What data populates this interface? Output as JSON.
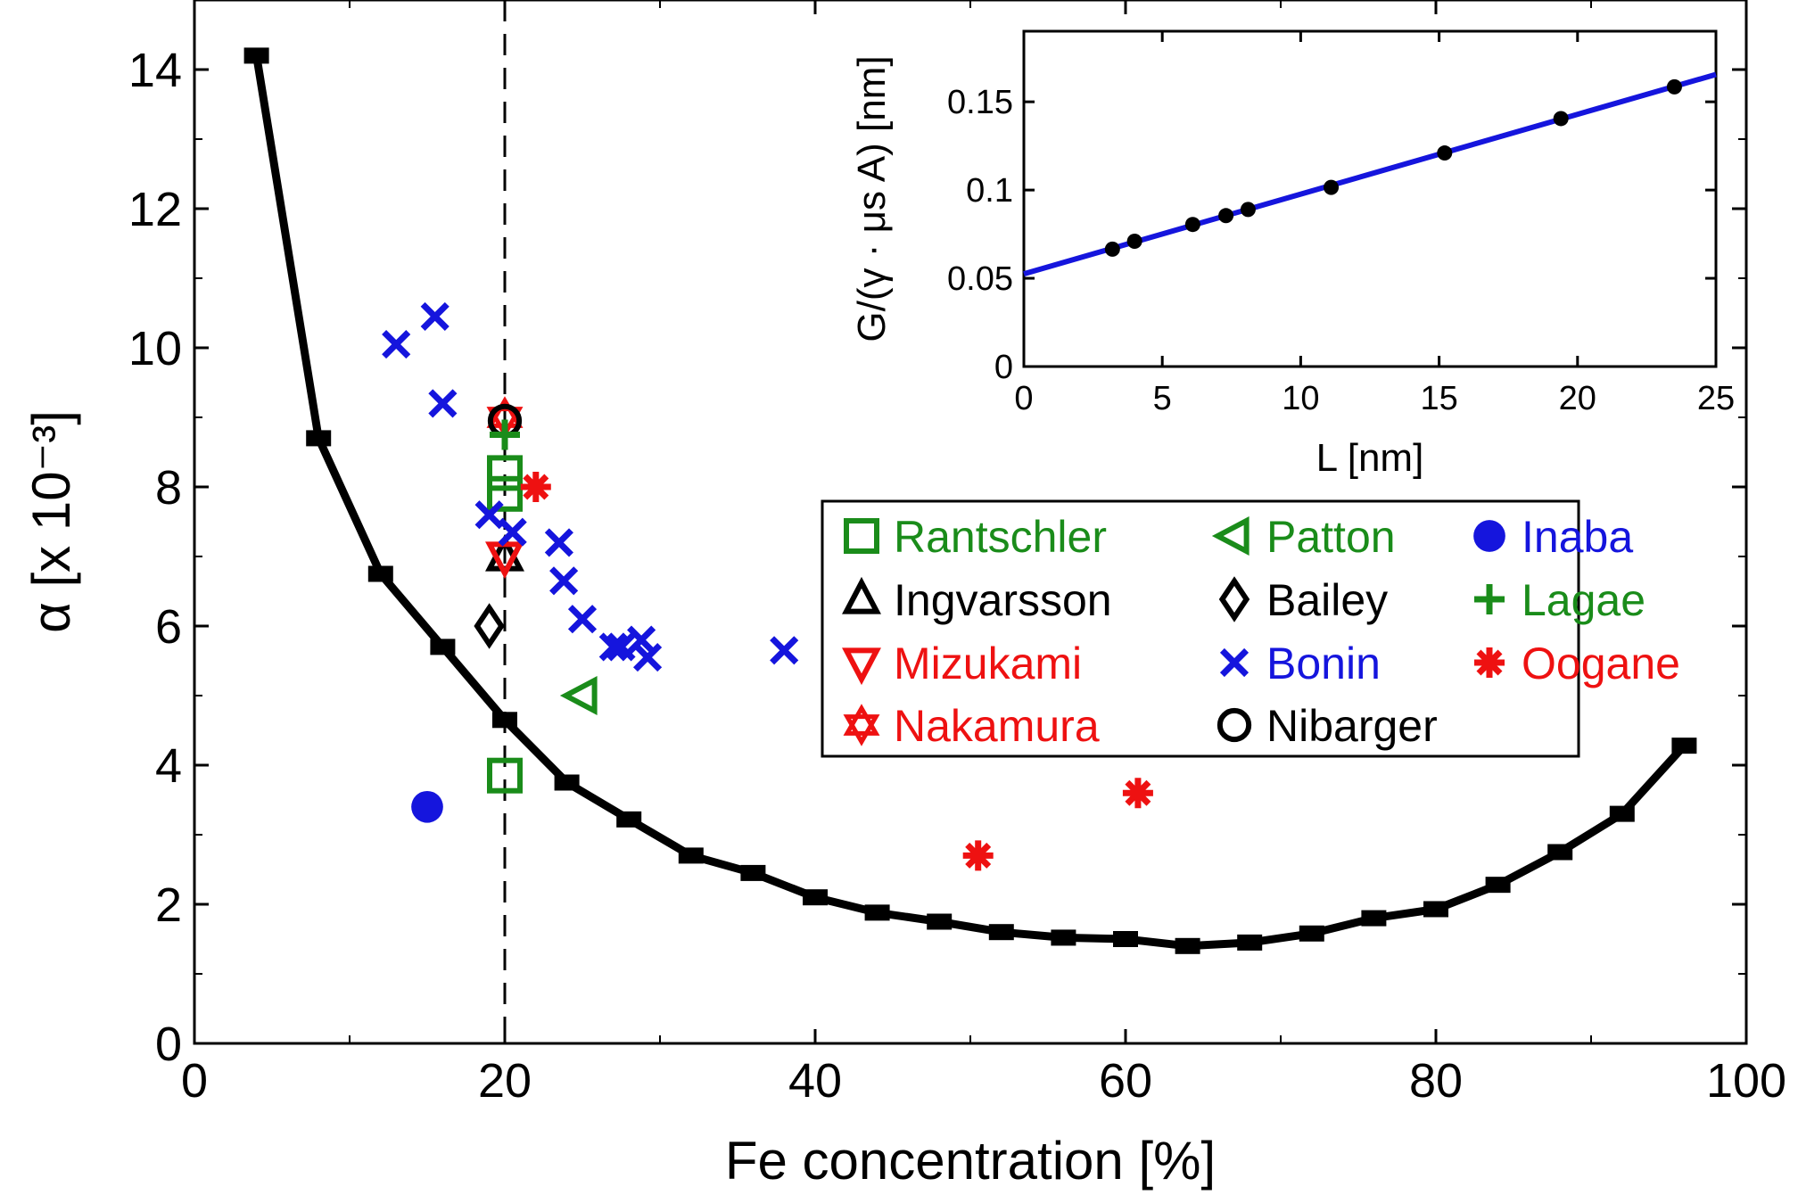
{
  "chart_data": [
    {
      "type": "line",
      "xlabel": "Fe concentration [%]",
      "ylabel": "α [x 10⁻³]",
      "xlim": [
        0,
        100
      ],
      "ylim": [
        0,
        15
      ],
      "xticks": [
        0,
        20,
        40,
        60,
        80,
        100
      ],
      "yticks": [
        0,
        2,
        4,
        6,
        8,
        10,
        12,
        14
      ],
      "grid": false,
      "reference_line": {
        "x": 20,
        "style": "dashed"
      },
      "simulation": {
        "x": [
          4,
          8,
          12,
          16,
          20,
          24,
          28,
          32,
          36,
          40,
          44,
          48,
          52,
          56,
          60,
          64,
          68,
          72,
          76,
          80,
          84,
          88,
          92,
          96
        ],
        "y": [
          14.2,
          8.7,
          6.75,
          5.7,
          4.65,
          3.75,
          3.22,
          2.7,
          2.45,
          2.1,
          1.88,
          1.75,
          1.6,
          1.52,
          1.5,
          1.4,
          1.45,
          1.58,
          1.8,
          1.93,
          2.28,
          2.75,
          3.3,
          4.28
        ]
      },
      "legend_position": "upper-right, below inset",
      "series": [
        {
          "name": "Rantschler",
          "marker": "square",
          "color": "#1a8c1a",
          "points": [
            [
              20,
              8.2
            ],
            [
              20,
              7.9
            ],
            [
              20,
              3.85
            ]
          ]
        },
        {
          "name": "Ingvarsson",
          "marker": "triangle-up",
          "color": "#000000",
          "points": [
            [
              20,
              7.0
            ]
          ]
        },
        {
          "name": "Mizukami",
          "marker": "triangle-down",
          "color": "#ee1111",
          "points": [
            [
              20,
              7.0
            ]
          ]
        },
        {
          "name": "Nakamura",
          "marker": "hexagram",
          "color": "#ee1111",
          "points": [
            [
              20,
              9.0
            ]
          ]
        },
        {
          "name": "Patton",
          "marker": "triangle-left",
          "color": "#1a8c1a",
          "points": [
            [
              25,
              5.0
            ]
          ]
        },
        {
          "name": "Bailey",
          "marker": "diamond",
          "color": "#000000",
          "points": [
            [
              19,
              6.0
            ]
          ]
        },
        {
          "name": "Bonin",
          "marker": "x",
          "color": "#1515dd",
          "points": [
            [
              13,
              10.05
            ],
            [
              15.5,
              10.45
            ],
            [
              16,
              9.2
            ],
            [
              19,
              7.6
            ],
            [
              20.5,
              7.35
            ],
            [
              23.5,
              7.2
            ],
            [
              23.8,
              6.65
            ],
            [
              25,
              6.1
            ],
            [
              27,
              5.7
            ],
            [
              27.5,
              5.7
            ],
            [
              28.8,
              5.8
            ],
            [
              29.2,
              5.55
            ],
            [
              38,
              5.65
            ]
          ]
        },
        {
          "name": "Nibarger",
          "marker": "circle-open",
          "color": "#000000",
          "points": [
            [
              20,
              8.95
            ]
          ]
        },
        {
          "name": "Inaba",
          "marker": "circle-filled",
          "color": "#1515dd",
          "points": [
            [
              15,
              3.4
            ]
          ]
        },
        {
          "name": "Lagae",
          "marker": "plus",
          "color": "#1a8c1a",
          "points": [
            [
              20,
              8.75
            ]
          ]
        },
        {
          "name": "Oogane",
          "marker": "asterisk",
          "color": "#ee1111",
          "points": [
            [
              22,
              8.0
            ],
            [
              50.5,
              2.7
            ],
            [
              60.8,
              3.6
            ]
          ]
        }
      ]
    },
    {
      "type": "line",
      "xlabel": "L [nm]",
      "ylabel": "G/(γ · μs A) [nm]",
      "xlim": [
        0,
        25
      ],
      "ylim": [
        0,
        0.19
      ],
      "xticks": [
        0,
        5,
        10,
        15,
        20,
        25
      ],
      "yticks": [
        0,
        0.05,
        0.1,
        0.15
      ],
      "ytick_labels": [
        "0",
        "0.05",
        "0.1",
        "0.15"
      ],
      "grid": false,
      "fit_line": {
        "color": "#1515dd",
        "x": [
          0,
          25
        ],
        "y": [
          0.0525,
          0.1655
        ]
      },
      "points": {
        "x": [
          3.2,
          4.0,
          6.1,
          7.3,
          8.1,
          11.1,
          15.2,
          19.4,
          23.5
        ],
        "y": [
          0.0665,
          0.071,
          0.0805,
          0.0855,
          0.089,
          0.1015,
          0.121,
          0.1405,
          0.1585
        ]
      }
    }
  ]
}
